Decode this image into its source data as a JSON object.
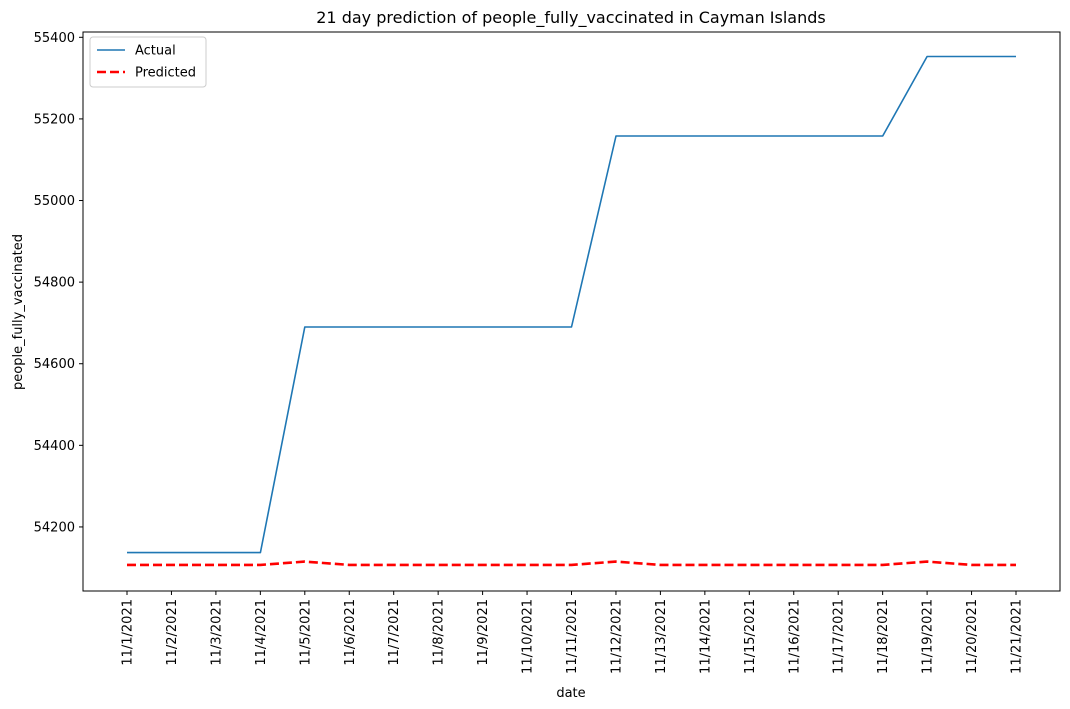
{
  "chart_data": {
    "type": "line",
    "title": "21 day prediction of people_fully_vaccinated in Cayman Islands",
    "xlabel": "date",
    "ylabel": "people_fully_vaccinated",
    "x": [
      "11/1/2021",
      "11/2/2021",
      "11/3/2021",
      "11/4/2021",
      "11/5/2021",
      "11/6/2021",
      "11/7/2021",
      "11/8/2021",
      "11/9/2021",
      "11/10/2021",
      "11/11/2021",
      "11/12/2021",
      "11/13/2021",
      "11/14/2021",
      "11/15/2021",
      "11/16/2021",
      "11/17/2021",
      "11/18/2021",
      "11/19/2021",
      "11/20/2021",
      "11/21/2021"
    ],
    "ylim": [
      54043,
      55413
    ],
    "yticks": [
      54200,
      54400,
      54600,
      54800,
      55000,
      55200,
      55400
    ],
    "grid": false,
    "legend_position": "top-left",
    "series": [
      {
        "name": "Actual",
        "color": "#1f77b4",
        "style": "solid",
        "values": [
          54137,
          54137,
          54137,
          54137,
          54690,
          54690,
          54690,
          54690,
          54690,
          54690,
          54690,
          55158,
          55158,
          55158,
          55158,
          55158,
          55158,
          55158,
          55353,
          55353,
          55353
        ]
      },
      {
        "name": "Predicted",
        "color": "#ff0000",
        "style": "dashed",
        "values": [
          54107,
          54107,
          54107,
          54107,
          54115,
          54107,
          54107,
          54107,
          54107,
          54107,
          54107,
          54115,
          54107,
          54107,
          54107,
          54107,
          54107,
          54107,
          54115,
          54107,
          54107
        ]
      }
    ]
  }
}
